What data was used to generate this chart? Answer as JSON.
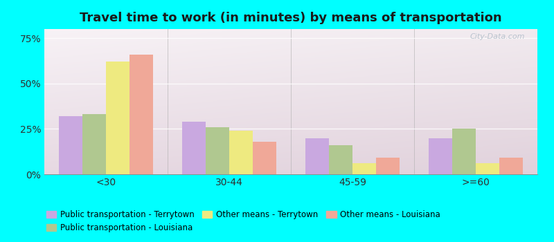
{
  "title": "Travel time to work (in minutes) by means of transportation",
  "categories": [
    "<30",
    "30-44",
    "45-59",
    ">=60"
  ],
  "series_order": [
    "Public transportation - Terrytown",
    "Public transportation - Louisiana",
    "Other means - Terrytown",
    "Other means - Louisiana"
  ],
  "series": {
    "Public transportation - Terrytown": [
      32,
      29,
      20,
      20
    ],
    "Public transportation - Louisiana": [
      33,
      26,
      16,
      25
    ],
    "Other means - Terrytown": [
      62,
      24,
      6,
      6
    ],
    "Other means - Louisiana": [
      66,
      18,
      9,
      9
    ]
  },
  "colors": {
    "Public transportation - Terrytown": "#c9a8e0",
    "Public transportation - Louisiana": "#b0c890",
    "Other means - Terrytown": "#eeea80",
    "Other means - Louisiana": "#f0a898"
  },
  "ylim": [
    0,
    80
  ],
  "yticks": [
    0,
    25,
    50,
    75
  ],
  "ytick_labels": [
    "0%",
    "25%",
    "50%",
    "75%"
  ],
  "background_color": "#00ffff",
  "title_fontsize": 13,
  "bar_width": 0.19,
  "watermark": "City-Data.com"
}
